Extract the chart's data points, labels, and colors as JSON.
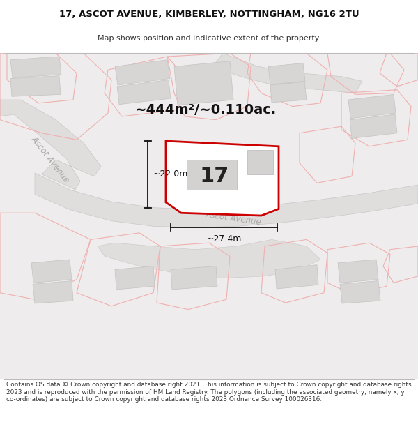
{
  "title_line1": "17, ASCOT AVENUE, KIMBERLEY, NOTTINGHAM, NG16 2TU",
  "title_line2": "Map shows position and indicative extent of the property.",
  "footer_text": "Contains OS data © Crown copyright and database right 2021. This information is subject to Crown copyright and database rights 2023 and is reproduced with the permission of HM Land Registry. The polygons (including the associated geometry, namely x, y co-ordinates) are subject to Crown copyright and database rights 2023 Ordnance Survey 100026316.",
  "area_label": "~444m²/~0.110ac.",
  "number_label": "17",
  "dim_vertical": "~22.0m",
  "dim_horizontal": "~27.4m",
  "road_label1": "Ascot Avenue",
  "road_label2": "Ascot Avenue",
  "map_bg": "#eeecec",
  "plot_fill": "#ffffff",
  "plot_edge": "#cc0000",
  "road_fill": "#e0dddd",
  "building_fill": "#d8d5d5",
  "building_edge": "#c5c2c2",
  "plot_outline": "#f0b0b0",
  "dim_color": "#111111",
  "road_label_color": "#aaaaaa"
}
